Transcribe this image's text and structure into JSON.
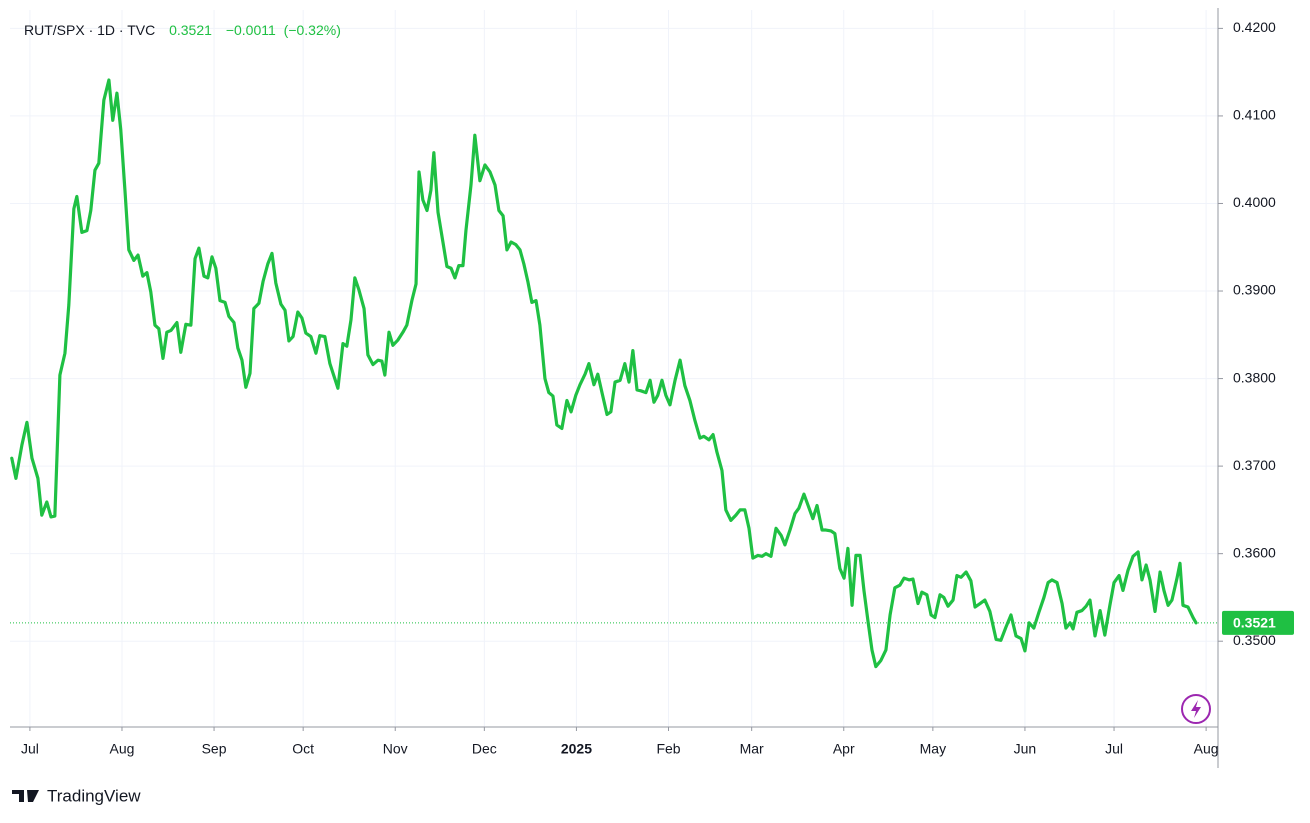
{
  "chart_data": {
    "type": "line",
    "title": "RUT/SPX · 1D · TVC",
    "last_price": 0.3521,
    "change": "−0.0011",
    "change_percent": "(−0.32%)",
    "brand": "TradingView",
    "grid": true,
    "xlim": [
      -6.7,
      400
    ],
    "ylim": [
      0.3402,
      0.4221
    ],
    "xticks": [
      {
        "value": 0,
        "label": "Jul"
      },
      {
        "value": 31,
        "label": "Aug"
      },
      {
        "value": 62,
        "label": "Sep"
      },
      {
        "value": 92,
        "label": "Oct"
      },
      {
        "value": 123,
        "label": "Nov"
      },
      {
        "value": 153,
        "label": "Dec"
      },
      {
        "value": 184,
        "label": "2025"
      },
      {
        "value": 215,
        "label": "Feb"
      },
      {
        "value": 243,
        "label": "Mar"
      },
      {
        "value": 274,
        "label": "Apr"
      },
      {
        "value": 304,
        "label": "May"
      },
      {
        "value": 335,
        "label": "Jun"
      },
      {
        "value": 365,
        "label": "Jul"
      },
      {
        "value": 396,
        "label": "Aug"
      }
    ],
    "yticks": [
      {
        "value": 0.35,
        "label": "0.3500"
      },
      {
        "value": 0.36,
        "label": "0.3600"
      },
      {
        "value": 0.37,
        "label": "0.3700"
      },
      {
        "value": 0.38,
        "label": "0.3800"
      },
      {
        "value": 0.39,
        "label": "0.3900"
      },
      {
        "value": 0.4,
        "label": "0.4000"
      },
      {
        "value": 0.41,
        "label": "0.4100"
      },
      {
        "value": 0.42,
        "label": "0.4200"
      }
    ],
    "series": [
      {
        "name": "RUT/SPX",
        "color": "#1fc043",
        "x": [
          -6.1,
          -4.7,
          -2.7,
          -1.0,
          0.7,
          2.7,
          4.0,
          5.7,
          7.1,
          8.4,
          10.1,
          11.8,
          13.1,
          14.8,
          15.8,
          17.5,
          19.2,
          20.5,
          21.9,
          23.2,
          24.9,
          26.6,
          27.9,
          29.3,
          30.6,
          32.0,
          33.3,
          35.0,
          36.4,
          38.0,
          39.4,
          40.7,
          42.1,
          43.4,
          44.8,
          46.1,
          47.5,
          49.5,
          50.8,
          52.5,
          54.2,
          55.6,
          56.9,
          58.6,
          59.9,
          61.3,
          62.6,
          64.0,
          65.7,
          67.0,
          68.7,
          70.0,
          71.4,
          72.7,
          74.1,
          75.4,
          77.1,
          78.5,
          80.1,
          81.5,
          82.8,
          84.5,
          85.9,
          87.2,
          88.6,
          90.2,
          91.6,
          92.9,
          94.6,
          96.3,
          97.6,
          99.3,
          101.0,
          103.7,
          105.4,
          106.7,
          108.1,
          109.4,
          110.8,
          112.5,
          113.8,
          115.5,
          117.2,
          118.5,
          119.5,
          120.9,
          122.2,
          123.9,
          125.6,
          126.9,
          128.6,
          130.0,
          131.0,
          132.3,
          133.7,
          135.0,
          136.0,
          137.4,
          139.1,
          140.4,
          141.8,
          143.1,
          144.4,
          145.8,
          146.8,
          148.5,
          149.8,
          151.5,
          153.2,
          154.9,
          156.6,
          157.9,
          159.3,
          160.6,
          162.0,
          163.6,
          165.0,
          166.3,
          167.7,
          169.0,
          170.4,
          171.7,
          173.4,
          174.7,
          176.1,
          177.4,
          179.1,
          180.8,
          182.2,
          183.8,
          185.2,
          186.9,
          188.2,
          189.9,
          191.2,
          192.6,
          194.3,
          195.6,
          197.0,
          198.7,
          200.3,
          201.7,
          203.0,
          204.4,
          205.7,
          207.4,
          208.8,
          210.1,
          211.4,
          212.8,
          214.1,
          215.5,
          217.2,
          218.9,
          220.5,
          222.2,
          223.9,
          225.6,
          226.9,
          228.6,
          230.0,
          231.3,
          233.0,
          234.3,
          236.0,
          237.7,
          239.1,
          240.7,
          242.1,
          243.4,
          245.1,
          246.5,
          247.8,
          249.5,
          251.2,
          252.9,
          254.2,
          255.9,
          257.6,
          258.9,
          260.6,
          262.0,
          263.6,
          265.0,
          266.7,
          268.0,
          269.7,
          271.0,
          272.7,
          274.1,
          275.4,
          276.8,
          278.1,
          279.5,
          280.8,
          282.2,
          283.5,
          284.8,
          286.5,
          288.2,
          289.6,
          291.2,
          292.9,
          294.3,
          296.0,
          297.3,
          299.0,
          300.3,
          302.0,
          303.4,
          304.7,
          306.4,
          307.7,
          309.1,
          310.8,
          312.1,
          313.5,
          315.2,
          316.8,
          318.2,
          319.9,
          321.5,
          323.2,
          325.3,
          326.9,
          328.6,
          330.3,
          332.0,
          333.7,
          335.0,
          336.4,
          338.0,
          339.7,
          341.4,
          342.8,
          344.1,
          345.8,
          347.5,
          348.8,
          350.2,
          351.2,
          352.5,
          354.2,
          355.6,
          356.9,
          358.6,
          360.3,
          361.9,
          363.6,
          365.0,
          366.7,
          368.0,
          369.7,
          371.4,
          373.1,
          374.4,
          375.8,
          377.1,
          378.8,
          380.5,
          381.8,
          383.2,
          384.5,
          386.2,
          387.2,
          388.2,
          389.9,
          391.6,
          392.6
        ],
        "values": [
          0.3709,
          0.3686,
          0.3724,
          0.375,
          0.3709,
          0.3686,
          0.3644,
          0.3659,
          0.3642,
          0.3643,
          0.3804,
          0.3829,
          0.3884,
          0.3994,
          0.4008,
          0.3967,
          0.3969,
          0.3992,
          0.4038,
          0.4046,
          0.4118,
          0.4141,
          0.4095,
          0.4126,
          0.4084,
          0.4015,
          0.3947,
          0.3935,
          0.3941,
          0.3917,
          0.3921,
          0.3899,
          0.3861,
          0.3857,
          0.3823,
          0.3853,
          0.3855,
          0.3864,
          0.383,
          0.3862,
          0.3861,
          0.3937,
          0.3949,
          0.3917,
          0.3915,
          0.3939,
          0.3926,
          0.3889,
          0.3887,
          0.3871,
          0.3864,
          0.3835,
          0.3821,
          0.379,
          0.3806,
          0.388,
          0.3886,
          0.3911,
          0.3931,
          0.3943,
          0.3909,
          0.3885,
          0.3878,
          0.3843,
          0.3848,
          0.3876,
          0.3869,
          0.3852,
          0.3848,
          0.3829,
          0.3849,
          0.3848,
          0.3817,
          0.3789,
          0.384,
          0.3837,
          0.3867,
          0.3915,
          0.3901,
          0.388,
          0.3827,
          0.3816,
          0.3821,
          0.382,
          0.3804,
          0.3853,
          0.3838,
          0.3844,
          0.3853,
          0.3861,
          0.3889,
          0.3908,
          0.4036,
          0.4004,
          0.3992,
          0.4015,
          0.4058,
          0.399,
          0.3955,
          0.3928,
          0.3926,
          0.3915,
          0.3929,
          0.3929,
          0.3969,
          0.4021,
          0.4078,
          0.4026,
          0.4044,
          0.4036,
          0.4021,
          0.3992,
          0.3986,
          0.3947,
          0.3956,
          0.3953,
          0.3947,
          0.3931,
          0.391,
          0.3887,
          0.3889,
          0.3861,
          0.38,
          0.3784,
          0.378,
          0.3747,
          0.3743,
          0.3775,
          0.3762,
          0.3781,
          0.3793,
          0.3805,
          0.3817,
          0.3793,
          0.3805,
          0.3784,
          0.3759,
          0.3762,
          0.3796,
          0.3798,
          0.3817,
          0.3796,
          0.3832,
          0.3787,
          0.3786,
          0.3784,
          0.3798,
          0.3773,
          0.3781,
          0.3798,
          0.3781,
          0.377,
          0.3798,
          0.3821,
          0.3792,
          0.3775,
          0.3752,
          0.3732,
          0.3734,
          0.373,
          0.3736,
          0.3716,
          0.3695,
          0.365,
          0.3638,
          0.3644,
          0.365,
          0.365,
          0.3629,
          0.3595,
          0.3598,
          0.3597,
          0.36,
          0.3597,
          0.3629,
          0.3621,
          0.361,
          0.3627,
          0.3646,
          0.3652,
          0.3668,
          0.3655,
          0.364,
          0.3655,
          0.3627,
          0.3627,
          0.3626,
          0.3623,
          0.3583,
          0.3572,
          0.3606,
          0.3541,
          0.3598,
          0.3598,
          0.3558,
          0.3522,
          0.349,
          0.3471,
          0.3478,
          0.349,
          0.353,
          0.3561,
          0.3564,
          0.3572,
          0.357,
          0.3571,
          0.3543,
          0.3556,
          0.3553,
          0.353,
          0.3527,
          0.3553,
          0.355,
          0.354,
          0.3547,
          0.3575,
          0.3573,
          0.3579,
          0.3569,
          0.3539,
          0.3543,
          0.3547,
          0.3534,
          0.3502,
          0.3501,
          0.3516,
          0.353,
          0.3506,
          0.3503,
          0.3489,
          0.3521,
          0.3515,
          0.3533,
          0.355,
          0.3567,
          0.357,
          0.3567,
          0.3543,
          0.3515,
          0.3521,
          0.3514,
          0.3533,
          0.3535,
          0.354,
          0.3547,
          0.3506,
          0.3535,
          0.3507,
          0.3541,
          0.3567,
          0.3575,
          0.3558,
          0.3581,
          0.3597,
          0.3602,
          0.357,
          0.3587,
          0.357,
          0.3534,
          0.3579,
          0.3558,
          0.3541,
          0.3547,
          0.3572,
          0.3589,
          0.3541,
          0.3539,
          0.3527,
          0.3521
        ]
      }
    ]
  }
}
